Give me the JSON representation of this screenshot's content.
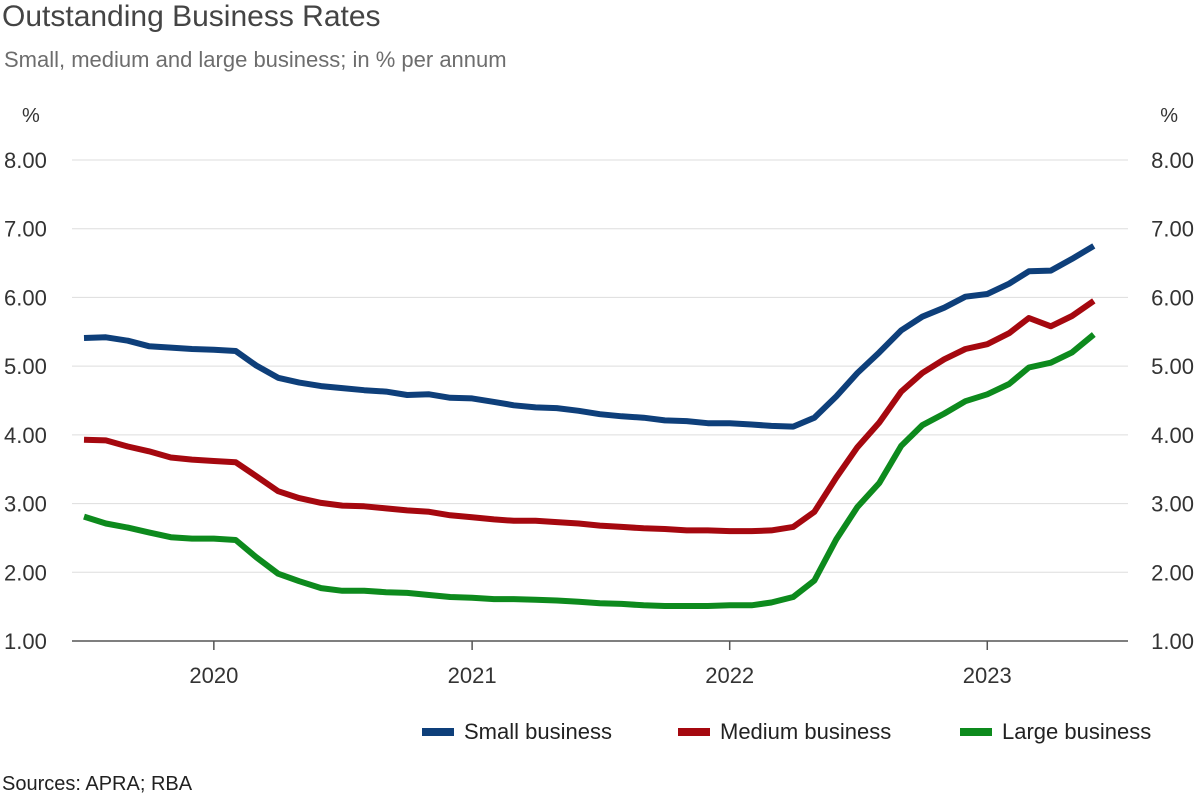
{
  "title": "Outstanding Business Rates",
  "subtitle": "Small, medium and large business; in % per annum",
  "source": "Sources: APRA; RBA",
  "chart_data": {
    "type": "line",
    "title": "Outstanding Business Rates",
    "subtitle": "Small, medium and large business; in % per annum",
    "y_unit_left": "%",
    "y_unit_right": "%",
    "ylim": [
      1,
      8
    ],
    "y_ticks": [
      1,
      2,
      3,
      4,
      5,
      6,
      7,
      8
    ],
    "y_tick_labels": [
      "1.00",
      "2.00",
      "3.00",
      "4.00",
      "5.00",
      "6.00",
      "7.00",
      "8.00"
    ],
    "x_ticks": [
      {
        "date": "2020-01-01",
        "label": "2020"
      },
      {
        "date": "2021-01-01",
        "label": "2021"
      },
      {
        "date": "2022-01-01",
        "label": "2022"
      },
      {
        "date": "2023-01-01",
        "label": "2023"
      }
    ],
    "xlim": [
      "2019-07-01",
      "2023-07-01"
    ],
    "grid": "horizontal",
    "legend": "bottom-right",
    "x": [
      "2019-07",
      "2019-08",
      "2019-09",
      "2019-10",
      "2019-11",
      "2019-12",
      "2020-01",
      "2020-02",
      "2020-03",
      "2020-04",
      "2020-05",
      "2020-06",
      "2020-07",
      "2020-08",
      "2020-09",
      "2020-10",
      "2020-11",
      "2020-12",
      "2021-01",
      "2021-02",
      "2021-03",
      "2021-04",
      "2021-05",
      "2021-06",
      "2021-07",
      "2021-08",
      "2021-09",
      "2021-10",
      "2021-11",
      "2021-12",
      "2022-01",
      "2022-02",
      "2022-03",
      "2022-04",
      "2022-05",
      "2022-06",
      "2022-07",
      "2022-08",
      "2022-09",
      "2022-10",
      "2022-11",
      "2022-12",
      "2023-01",
      "2023-02",
      "2023-03",
      "2023-04",
      "2023-05",
      "2023-06"
    ],
    "series": [
      {
        "name": "Small business",
        "color": "#0e3f7a",
        "values": [
          5.41,
          5.42,
          5.37,
          5.29,
          5.27,
          5.25,
          5.24,
          5.22,
          5.01,
          4.83,
          4.76,
          4.71,
          4.68,
          4.65,
          4.63,
          4.58,
          4.59,
          4.54,
          4.53,
          4.48,
          4.43,
          4.4,
          4.39,
          4.35,
          4.3,
          4.27,
          4.25,
          4.21,
          4.2,
          4.17,
          4.17,
          4.15,
          4.13,
          4.12,
          4.25,
          4.56,
          4.9,
          5.2,
          5.52,
          5.72,
          5.85,
          6.01,
          6.05,
          6.2,
          6.38,
          6.39,
          6.56,
          6.75
        ]
      },
      {
        "name": "Medium business",
        "color": "#a5080f",
        "values": [
          3.93,
          3.92,
          3.83,
          3.76,
          3.67,
          3.64,
          3.62,
          3.6,
          3.4,
          3.18,
          3.08,
          3.01,
          2.97,
          2.96,
          2.93,
          2.9,
          2.88,
          2.83,
          2.8,
          2.77,
          2.75,
          2.75,
          2.73,
          2.71,
          2.68,
          2.66,
          2.64,
          2.63,
          2.61,
          2.61,
          2.6,
          2.6,
          2.61,
          2.66,
          2.88,
          3.38,
          3.82,
          4.18,
          4.63,
          4.9,
          5.1,
          5.25,
          5.32,
          5.48,
          5.7,
          5.58,
          5.73,
          5.95
        ]
      },
      {
        "name": "Large business",
        "color": "#0d8a1d",
        "values": [
          2.81,
          2.71,
          2.65,
          2.58,
          2.51,
          2.49,
          2.49,
          2.47,
          2.22,
          1.98,
          1.87,
          1.77,
          1.73,
          1.73,
          1.71,
          1.7,
          1.67,
          1.64,
          1.63,
          1.61,
          1.61,
          1.6,
          1.59,
          1.57,
          1.55,
          1.54,
          1.52,
          1.51,
          1.51,
          1.51,
          1.52,
          1.52,
          1.56,
          1.64,
          1.88,
          2.48,
          2.95,
          3.3,
          3.84,
          4.14,
          4.31,
          4.49,
          4.59,
          4.74,
          4.98,
          5.05,
          5.2,
          5.46
        ]
      }
    ]
  }
}
